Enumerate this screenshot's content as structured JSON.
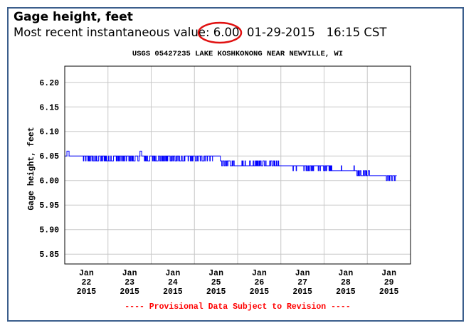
{
  "header": {
    "title": "Gage height, feet",
    "recent_label": "Most recent instantaneous value:",
    "recent_value": "6.00",
    "recent_date": "01-29-2015",
    "recent_time": "16:15 CST"
  },
  "colors": {
    "frame": "#3b5e8c",
    "series": "#0000ff",
    "grid": "#c8c8c8",
    "provisional": "#ff0000",
    "highlight": "#e01010"
  },
  "chart_data": {
    "type": "line",
    "title": "USGS 05427235 LAKE KOSHKONONG NEAR NEWVILLE, WI",
    "ylabel": "Gage height, feet",
    "xlabel": "",
    "ylim": [
      5.83,
      6.233
    ],
    "xlim_days": [
      0,
      8
    ],
    "x_origin": "2015-01-22 00:00",
    "yticks": [
      "6.20",
      "6.15",
      "6.10",
      "6.05",
      "6.00",
      "5.95",
      "5.90",
      "5.85"
    ],
    "ytick_values": [
      6.2,
      6.15,
      6.1,
      6.05,
      6.0,
      5.95,
      5.9,
      5.85
    ],
    "xticks": [
      {
        "m": "Jan",
        "d": "22",
        "y": "2015"
      },
      {
        "m": "Jan",
        "d": "23",
        "y": "2015"
      },
      {
        "m": "Jan",
        "d": "24",
        "y": "2015"
      },
      {
        "m": "Jan",
        "d": "25",
        "y": "2015"
      },
      {
        "m": "Jan",
        "d": "26",
        "y": "2015"
      },
      {
        "m": "Jan",
        "d": "27",
        "y": "2015"
      },
      {
        "m": "Jan",
        "d": "28",
        "y": "2015"
      },
      {
        "m": "Jan",
        "d": "29",
        "y": "2015"
      }
    ],
    "grid": true,
    "series": [
      {
        "name": "Gage height",
        "segments_days": [
          {
            "start": 0.0,
            "end": 0.05,
            "base": 6.05,
            "alt": 6.05,
            "density": 0
          },
          {
            "start": 0.05,
            "end": 0.1,
            "base": 6.06,
            "alt": 6.06,
            "density": 0
          },
          {
            "start": 0.1,
            "end": 0.42,
            "base": 6.05,
            "alt": 6.05,
            "density": 0
          },
          {
            "start": 0.42,
            "end": 1.74,
            "base": 6.05,
            "alt": 6.04,
            "density": 0.45
          },
          {
            "start": 1.74,
            "end": 1.78,
            "base": 6.06,
            "alt": 6.06,
            "density": 0
          },
          {
            "start": 1.78,
            "end": 3.22,
            "base": 6.05,
            "alt": 6.04,
            "density": 0.45
          },
          {
            "start": 3.22,
            "end": 3.42,
            "base": 6.05,
            "alt": 6.04,
            "density": 0.15
          },
          {
            "start": 3.42,
            "end": 3.6,
            "base": 6.05,
            "alt": 6.05,
            "density": 0
          },
          {
            "start": 3.6,
            "end": 3.9,
            "base": 6.04,
            "alt": 6.03,
            "density": 0.5
          },
          {
            "start": 3.9,
            "end": 4.46,
            "base": 6.03,
            "alt": 6.04,
            "density": 0.12
          },
          {
            "start": 4.46,
            "end": 4.95,
            "base": 6.04,
            "alt": 6.03,
            "density": 0.5
          },
          {
            "start": 4.95,
            "end": 5.28,
            "base": 6.03,
            "alt": 6.03,
            "density": 0
          },
          {
            "start": 5.28,
            "end": 6.18,
            "base": 6.03,
            "alt": 6.02,
            "density": 0.25
          },
          {
            "start": 6.18,
            "end": 6.76,
            "base": 6.02,
            "alt": 6.03,
            "density": 0.06
          },
          {
            "start": 6.76,
            "end": 7.06,
            "base": 6.02,
            "alt": 6.01,
            "density": 0.5
          },
          {
            "start": 7.06,
            "end": 7.43,
            "base": 6.01,
            "alt": 6.01,
            "density": 0
          },
          {
            "start": 7.43,
            "end": 7.68,
            "base": 6.01,
            "alt": 6.0,
            "density": 0.5
          }
        ]
      }
    ],
    "footnote": "---- Provisional Data Subject to Revision ----"
  }
}
